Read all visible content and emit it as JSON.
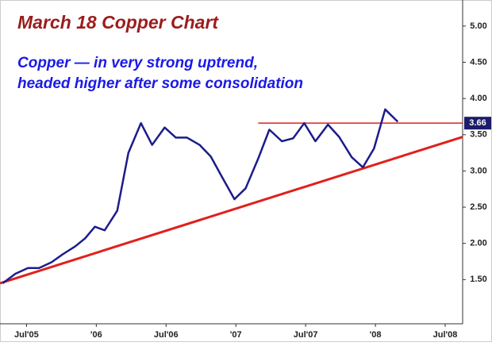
{
  "chart_data": {
    "type": "line",
    "title": "March 18 Copper Chart",
    "subtitle": [
      "Copper — in very strong uptrend,",
      "headed higher after some consolidation"
    ],
    "x": [
      2005.33,
      2005.42,
      2005.51,
      2005.59,
      2005.68,
      2005.76,
      2005.85,
      2005.92,
      2005.99,
      2006.06,
      2006.15,
      2006.23,
      2006.32,
      2006.4,
      2006.49,
      2006.57,
      2006.65,
      2006.74,
      2006.82,
      2006.9,
      2006.99,
      2007.07,
      2007.16,
      2007.24,
      2007.33,
      2007.41,
      2007.49,
      2007.57,
      2007.66,
      2007.74,
      2007.83,
      2007.91,
      2007.99,
      2008.07,
      2008.16
    ],
    "series": [
      {
        "color": "#1c1c8c",
        "values": [
          1.45,
          1.58,
          1.66,
          1.66,
          1.74,
          1.85,
          1.96,
          2.07,
          2.23,
          2.18,
          2.45,
          3.25,
          3.66,
          3.36,
          3.6,
          3.46,
          3.46,
          3.36,
          3.2,
          2.92,
          2.61,
          2.76,
          3.17,
          3.57,
          3.41,
          3.45,
          3.66,
          3.41,
          3.64,
          3.47,
          3.19,
          3.05,
          3.31,
          3.85,
          3.68
        ]
      }
    ],
    "reference_lines": [
      {
        "value": 3.66,
        "label": "3.66",
        "from": 2007.16,
        "color": "#e0201c"
      }
    ],
    "trendline": {
      "x": [
        2005.31,
        2008.625
      ],
      "values": [
        1.45,
        3.47
      ],
      "color": "#e0201c"
    },
    "xlim": [
      2005.31,
      2008.625
    ],
    "ylim": [
      0.89,
      5.36
    ],
    "xticks": [
      {
        "value": 2005.5,
        "label": "Jul'05"
      },
      {
        "value": 2006,
        "label": "'06"
      },
      {
        "value": 2006.5,
        "label": "Jul'06"
      },
      {
        "value": 2007,
        "label": "'07"
      },
      {
        "value": 2007.5,
        "label": "Jul'07"
      },
      {
        "value": 2008,
        "label": "'08"
      },
      {
        "value": 2008.5,
        "label": "Jul'08"
      }
    ],
    "yticks": [
      {
        "value": 1.5,
        "label": "1.50"
      },
      {
        "value": 2,
        "label": "2.00"
      },
      {
        "value": 2.5,
        "label": "2.50"
      },
      {
        "value": 3,
        "label": "3.00"
      },
      {
        "value": 3.5,
        "label": "3.50"
      },
      {
        "value": 4,
        "label": "4.00"
      },
      {
        "value": 4.5,
        "label": "4.50"
      },
      {
        "value": 5,
        "label": "5.00"
      }
    ]
  }
}
